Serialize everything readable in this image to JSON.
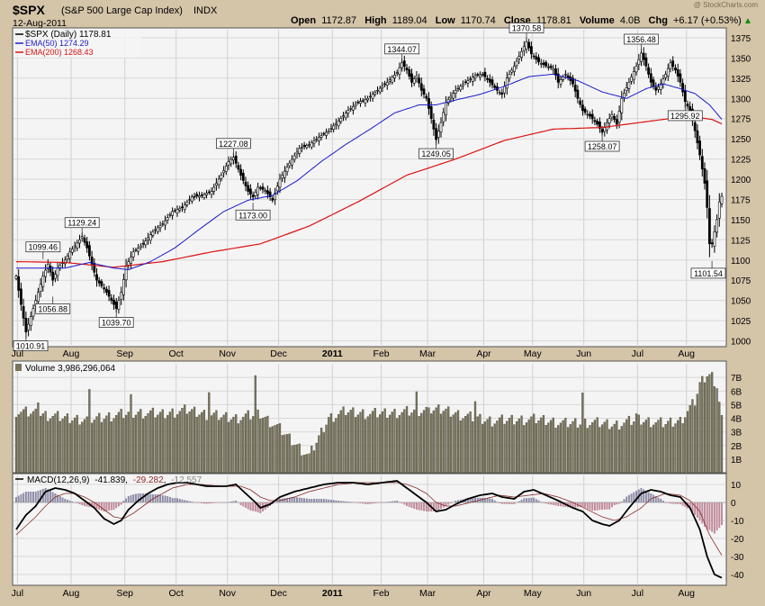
{
  "header": {
    "symbol": "$SPX",
    "name": "(S&P 500 Large Cap Index)",
    "exchange": "INDX",
    "date": "12-Aug-2011",
    "open_label": "Open",
    "open": "1172.87",
    "high_label": "High",
    "high": "1189.04",
    "low_label": "Low",
    "low": "1170.74",
    "close_label": "Close",
    "close": "1178.81",
    "volume_label": "Volume",
    "volume": "4.0B",
    "chg_label": "Chg",
    "chg": "+6.17 (+0.53%)",
    "chg_arrow": "▲",
    "watermark": "@ StockCharts.com"
  },
  "legend": {
    "price": "$SPX (Daily) 1178.81",
    "ema50": "EMA(50) 1274.29",
    "ema200": "EMA(200) 1268.43"
  },
  "volume_panel": {
    "label": "Volume 3,986,296,064"
  },
  "macd_panel": {
    "label": "MACD(12,26,9)",
    "macd": "-41.839",
    "signal": "-29.282",
    "hist": "-12.557"
  },
  "colors": {
    "ema50": "#1a1acc",
    "ema200": "#dd1111",
    "volume_fill": "#79745c",
    "macd_line": "#000000",
    "signal_line": "#8a2b2b",
    "hist_pos": "#8c8ca6",
    "hist_neg": "#c08a9a",
    "chg": "#0a8a0a"
  },
  "chart_data": {
    "type": "line",
    "title": "$SPX (S&P 500 Large Cap Index) Daily",
    "x_start": "2010-07-01",
    "x_end": "2011-08-12",
    "month_ticks": [
      {
        "label": "Jul",
        "t": 0.5
      },
      {
        "label": "Aug",
        "t": 22.5
      },
      {
        "label": "Sep",
        "t": 44.5
      },
      {
        "label": "Oct",
        "t": 65.5
      },
      {
        "label": "Nov",
        "t": 86.5
      },
      {
        "label": "Dec",
        "t": 107.5
      },
      {
        "label": "2011",
        "t": 129.5,
        "bold": true
      },
      {
        "label": "Feb",
        "t": 149.5
      },
      {
        "label": "Mar",
        "t": 168.5
      },
      {
        "label": "Apr",
        "t": 191.5
      },
      {
        "label": "May",
        "t": 211.5
      },
      {
        "label": "Jun",
        "t": 232.5
      },
      {
        "label": "Jul",
        "t": 254.5
      },
      {
        "label": "Aug",
        "t": 274.5
      }
    ],
    "price_axis": {
      "ylim": [
        995,
        1385
      ],
      "ticks": [
        1000,
        1025,
        1050,
        1075,
        1100,
        1125,
        1150,
        1175,
        1200,
        1225,
        1250,
        1275,
        1300,
        1325,
        1350,
        1375
      ]
    },
    "price_keypoints": [
      [
        0,
        1080
      ],
      [
        2,
        1045
      ],
      [
        4,
        1011
      ],
      [
        6,
        1030
      ],
      [
        9,
        1060
      ],
      [
        11,
        1080
      ],
      [
        13,
        1095
      ],
      [
        15,
        1075
      ],
      [
        17,
        1090
      ],
      [
        20,
        1100
      ],
      [
        22,
        1110
      ],
      [
        25,
        1121
      ],
      [
        27,
        1129
      ],
      [
        29,
        1115
      ],
      [
        31,
        1095
      ],
      [
        33,
        1075
      ],
      [
        35,
        1068
      ],
      [
        37,
        1060
      ],
      [
        39,
        1050
      ],
      [
        41,
        1040
      ],
      [
        43,
        1060
      ],
      [
        45,
        1092
      ],
      [
        48,
        1110
      ],
      [
        52,
        1120
      ],
      [
        56,
        1135
      ],
      [
        60,
        1145
      ],
      [
        64,
        1160
      ],
      [
        68,
        1165
      ],
      [
        72,
        1178
      ],
      [
        76,
        1180
      ],
      [
        80,
        1185
      ],
      [
        84,
        1205
      ],
      [
        87,
        1222
      ],
      [
        89,
        1227
      ],
      [
        92,
        1205
      ],
      [
        95,
        1185
      ],
      [
        97,
        1178
      ],
      [
        99,
        1190
      ],
      [
        102,
        1186
      ],
      [
        105,
        1174
      ],
      [
        108,
        1200
      ],
      [
        112,
        1220
      ],
      [
        116,
        1238
      ],
      [
        120,
        1243
      ],
      [
        124,
        1252
      ],
      [
        128,
        1260
      ],
      [
        132,
        1272
      ],
      [
        136,
        1285
      ],
      [
        140,
        1295
      ],
      [
        144,
        1300
      ],
      [
        148,
        1310
      ],
      [
        152,
        1320
      ],
      [
        156,
        1332
      ],
      [
        158,
        1344
      ],
      [
        160,
        1335
      ],
      [
        162,
        1320
      ],
      [
        164,
        1328
      ],
      [
        166,
        1310
      ],
      [
        168,
        1300
      ],
      [
        170,
        1275
      ],
      [
        172,
        1249
      ],
      [
        174,
        1270
      ],
      [
        176,
        1295
      ],
      [
        180,
        1310
      ],
      [
        184,
        1320
      ],
      [
        188,
        1328
      ],
      [
        191,
        1330
      ],
      [
        194,
        1320
      ],
      [
        197,
        1310
      ],
      [
        199,
        1305
      ],
      [
        201,
        1325
      ],
      [
        204,
        1340
      ],
      [
        207,
        1358
      ],
      [
        209,
        1370
      ],
      [
        211,
        1355
      ],
      [
        214,
        1345
      ],
      [
        217,
        1340
      ],
      [
        220,
        1337
      ],
      [
        222,
        1320
      ],
      [
        225,
        1330
      ],
      [
        228,
        1318
      ],
      [
        230,
        1300
      ],
      [
        232,
        1285
      ],
      [
        235,
        1278
      ],
      [
        238,
        1268
      ],
      [
        240,
        1258
      ],
      [
        242,
        1270
      ],
      [
        244,
        1280
      ],
      [
        246,
        1268
      ],
      [
        248,
        1300
      ],
      [
        251,
        1320
      ],
      [
        254,
        1340
      ],
      [
        256,
        1356
      ],
      [
        258,
        1340
      ],
      [
        260,
        1320
      ],
      [
        262,
        1310
      ],
      [
        264,
        1318
      ],
      [
        266,
        1330
      ],
      [
        268,
        1344
      ],
      [
        270,
        1335
      ],
      [
        272,
        1320
      ],
      [
        274,
        1296
      ],
      [
        276,
        1285
      ],
      [
        278,
        1260
      ],
      [
        280,
        1230
      ],
      [
        282,
        1195
      ],
      [
        283,
        1165
      ],
      [
        284,
        1120
      ],
      [
        285,
        1120
      ],
      [
        287,
        1150
      ],
      [
        288,
        1172
      ],
      [
        289,
        1178.81
      ]
    ],
    "annotations": [
      {
        "label": "1010.91",
        "t": 4,
        "value": 1011,
        "pos": "below"
      },
      {
        "label": "1099.46",
        "t": 11,
        "value": 1099,
        "pos": "above"
      },
      {
        "label": "1056.88",
        "t": 15,
        "value": 1057,
        "pos": "below"
      },
      {
        "label": "1129.24",
        "t": 27,
        "value": 1129,
        "pos": "above"
      },
      {
        "label": "1039.70",
        "t": 41,
        "value": 1040,
        "pos": "below"
      },
      {
        "label": "1227.08",
        "t": 89,
        "value": 1227,
        "pos": "above"
      },
      {
        "label": "1173.00",
        "t": 97,
        "value": 1173,
        "pos": "below"
      },
      {
        "label": "1344.07",
        "t": 158,
        "value": 1344,
        "pos": "above"
      },
      {
        "label": "1249.05",
        "t": 172,
        "value": 1249,
        "pos": "below"
      },
      {
        "label": "1370.58",
        "t": 209,
        "value": 1370,
        "pos": "above"
      },
      {
        "label": "1258.07",
        "t": 240,
        "value": 1258,
        "pos": "below"
      },
      {
        "label": "1356.48",
        "t": 256,
        "value": 1356,
        "pos": "above"
      },
      {
        "label": "1295.92",
        "t": 274,
        "value": 1296,
        "pos": "below"
      },
      {
        "label": "1101.54",
        "t": 285,
        "value": 1101,
        "pos": "below"
      }
    ],
    "ema50_keypoints": [
      [
        0,
        1090
      ],
      [
        20,
        1090
      ],
      [
        30,
        1097
      ],
      [
        40,
        1090
      ],
      [
        46,
        1088
      ],
      [
        55,
        1098
      ],
      [
        65,
        1115
      ],
      [
        75,
        1138
      ],
      [
        85,
        1160
      ],
      [
        95,
        1174
      ],
      [
        105,
        1180
      ],
      [
        115,
        1198
      ],
      [
        125,
        1222
      ],
      [
        135,
        1243
      ],
      [
        145,
        1262
      ],
      [
        155,
        1282
      ],
      [
        165,
        1292
      ],
      [
        172,
        1292
      ],
      [
        180,
        1298
      ],
      [
        190,
        1305
      ],
      [
        200,
        1315
      ],
      [
        210,
        1327
      ],
      [
        220,
        1330
      ],
      [
        230,
        1322
      ],
      [
        240,
        1308
      ],
      [
        250,
        1300
      ],
      [
        258,
        1312
      ],
      [
        265,
        1318
      ],
      [
        272,
        1312
      ],
      [
        278,
        1306
      ],
      [
        284,
        1292
      ],
      [
        289,
        1274
      ]
    ],
    "ema200_keypoints": [
      [
        0,
        1098
      ],
      [
        20,
        1097
      ],
      [
        40,
        1091
      ],
      [
        60,
        1098
      ],
      [
        80,
        1110
      ],
      [
        100,
        1120
      ],
      [
        120,
        1142
      ],
      [
        140,
        1172
      ],
      [
        160,
        1205
      ],
      [
        180,
        1225
      ],
      [
        200,
        1248
      ],
      [
        220,
        1262
      ],
      [
        240,
        1264
      ],
      [
        260,
        1272
      ],
      [
        275,
        1278
      ],
      [
        285,
        1274
      ],
      [
        289,
        1268.43
      ]
    ],
    "volume_axis": {
      "ylim": [
        0,
        8
      ],
      "unit": "B",
      "ticks": [
        1,
        2,
        3,
        4,
        5,
        6,
        7
      ],
      "tick_labels": [
        "1B",
        "2B",
        "3B",
        "4B",
        "5B",
        "6B",
        "7B"
      ]
    },
    "volume_keypoints": [
      [
        0,
        4.5
      ],
      [
        10,
        4.3
      ],
      [
        20,
        4.0
      ],
      [
        30,
        3.9
      ],
      [
        40,
        4.2
      ],
      [
        50,
        4.4
      ],
      [
        60,
        4.3
      ],
      [
        70,
        4.6
      ],
      [
        80,
        4.2
      ],
      [
        90,
        4.0
      ],
      [
        100,
        4.3
      ],
      [
        108,
        3.2
      ],
      [
        115,
        2.0
      ],
      [
        120,
        1.2
      ],
      [
        128,
        4.0
      ],
      [
        135,
        4.5
      ],
      [
        145,
        4.3
      ],
      [
        155,
        4.4
      ],
      [
        165,
        4.5
      ],
      [
        175,
        4.6
      ],
      [
        185,
        4.1
      ],
      [
        195,
        3.8
      ],
      [
        205,
        3.9
      ],
      [
        215,
        3.9
      ],
      [
        225,
        3.6
      ],
      [
        235,
        3.7
      ],
      [
        245,
        3.5
      ],
      [
        255,
        3.9
      ],
      [
        265,
        3.6
      ],
      [
        272,
        3.8
      ],
      [
        278,
        5.2
      ],
      [
        280,
        6.5
      ],
      [
        283,
        7.2
      ],
      [
        285,
        7.1
      ],
      [
        287,
        6.4
      ],
      [
        289,
        4.0
      ]
    ],
    "volume_spikes": [
      [
        9,
        5.5
      ],
      [
        30,
        5.7
      ],
      [
        47,
        5.4
      ],
      [
        79,
        6.1
      ],
      [
        98,
        7.0
      ],
      [
        164,
        5.6
      ],
      [
        169,
        5.2
      ],
      [
        188,
        5.3
      ],
      [
        232,
        5.8
      ],
      [
        254,
        4.2
      ]
    ],
    "macd_axis": {
      "ylim": [
        -45,
        15
      ],
      "ticks": [
        10,
        0,
        -10,
        -20,
        -30,
        -40
      ]
    },
    "macd_keypoints": [
      [
        0,
        -15
      ],
      [
        4,
        -7
      ],
      [
        8,
        -2
      ],
      [
        12,
        6
      ],
      [
        16,
        8
      ],
      [
        20,
        7
      ],
      [
        24,
        5
      ],
      [
        26,
        3
      ],
      [
        32,
        -3
      ],
      [
        36,
        -9
      ],
      [
        40,
        -12
      ],
      [
        43,
        -10
      ],
      [
        46,
        -4
      ],
      [
        50,
        1
      ],
      [
        54,
        5
      ],
      [
        58,
        8
      ],
      [
        62,
        10
      ],
      [
        66,
        11
      ],
      [
        70,
        11
      ],
      [
        74,
        10
      ],
      [
        78,
        9
      ],
      [
        82,
        9
      ],
      [
        86,
        9
      ],
      [
        90,
        10
      ],
      [
        94,
        5
      ],
      [
        98,
        0
      ],
      [
        100,
        -3
      ],
      [
        104,
        -1
      ],
      [
        108,
        3
      ],
      [
        114,
        6
      ],
      [
        120,
        8
      ],
      [
        126,
        10
      ],
      [
        132,
        11
      ],
      [
        138,
        11
      ],
      [
        144,
        10
      ],
      [
        150,
        11
      ],
      [
        156,
        12
      ],
      [
        160,
        8
      ],
      [
        164,
        4
      ],
      [
        168,
        0
      ],
      [
        172,
        -5
      ],
      [
        176,
        -4
      ],
      [
        180,
        -1
      ],
      [
        185,
        2
      ],
      [
        190,
        4
      ],
      [
        195,
        5
      ],
      [
        199,
        3
      ],
      [
        204,
        2
      ],
      [
        208,
        6
      ],
      [
        212,
        7
      ],
      [
        217,
        4
      ],
      [
        222,
        1
      ],
      [
        228,
        -3
      ],
      [
        232,
        -5
      ],
      [
        236,
        -10
      ],
      [
        240,
        -12
      ],
      [
        243,
        -13
      ],
      [
        247,
        -10
      ],
      [
        251,
        -3
      ],
      [
        256,
        5
      ],
      [
        260,
        7
      ],
      [
        264,
        6
      ],
      [
        268,
        4
      ],
      [
        272,
        3
      ],
      [
        276,
        -3
      ],
      [
        280,
        -15
      ],
      [
        283,
        -30
      ],
      [
        286,
        -40
      ],
      [
        289,
        -41.839
      ]
    ],
    "signal_keypoints": [
      [
        0,
        -18
      ],
      [
        4,
        -13
      ],
      [
        8,
        -8
      ],
      [
        12,
        -2
      ],
      [
        16,
        3
      ],
      [
        20,
        5
      ],
      [
        24,
        5
      ],
      [
        28,
        3
      ],
      [
        32,
        0
      ],
      [
        36,
        -4
      ],
      [
        40,
        -8
      ],
      [
        44,
        -9
      ],
      [
        48,
        -6
      ],
      [
        52,
        -2
      ],
      [
        56,
        2
      ],
      [
        60,
        5
      ],
      [
        64,
        8
      ],
      [
        70,
        10
      ],
      [
        76,
        10
      ],
      [
        84,
        9
      ],
      [
        92,
        9
      ],
      [
        96,
        7
      ],
      [
        100,
        3
      ],
      [
        104,
        1
      ],
      [
        108,
        1
      ],
      [
        114,
        3
      ],
      [
        120,
        6
      ],
      [
        126,
        8
      ],
      [
        132,
        10
      ],
      [
        140,
        11
      ],
      [
        148,
        11
      ],
      [
        156,
        11
      ],
      [
        160,
        10
      ],
      [
        164,
        8
      ],
      [
        168,
        5
      ],
      [
        172,
        0
      ],
      [
        176,
        -2
      ],
      [
        180,
        -2
      ],
      [
        186,
        0
      ],
      [
        192,
        2
      ],
      [
        198,
        4
      ],
      [
        204,
        3
      ],
      [
        210,
        4
      ],
      [
        216,
        5
      ],
      [
        222,
        3
      ],
      [
        228,
        0
      ],
      [
        234,
        -4
      ],
      [
        240,
        -8
      ],
      [
        245,
        -10
      ],
      [
        250,
        -8
      ],
      [
        256,
        -3
      ],
      [
        260,
        2
      ],
      [
        266,
        5
      ],
      [
        272,
        4
      ],
      [
        276,
        1
      ],
      [
        280,
        -5
      ],
      [
        284,
        -18
      ],
      [
        287,
        -25
      ],
      [
        289,
        -29.282
      ]
    ]
  }
}
